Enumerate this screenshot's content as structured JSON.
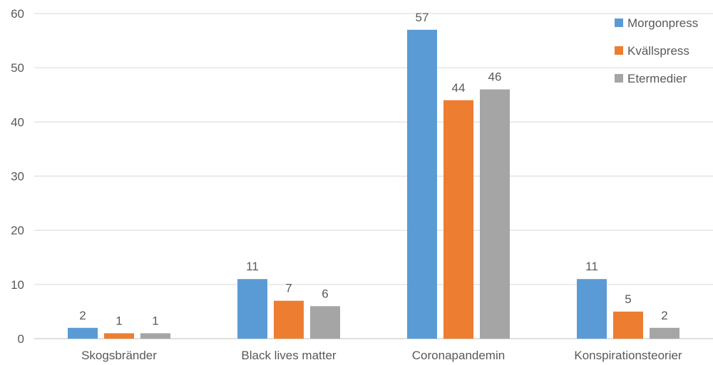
{
  "chart_data": {
    "type": "bar",
    "categories": [
      "Skogsbränder",
      "Black lives matter",
      "Coronapandemin",
      "Konspirationsteorier"
    ],
    "series": [
      {
        "name": "Morgonpress",
        "color": "#5b9bd5",
        "values": [
          2,
          11,
          57,
          11
        ]
      },
      {
        "name": "Kvällspress",
        "color": "#ed7d31",
        "values": [
          1,
          7,
          44,
          5
        ]
      },
      {
        "name": "Etermedier",
        "color": "#a5a5a5",
        "values": [
          1,
          6,
          46,
          2
        ]
      }
    ],
    "ylim": [
      0,
      60
    ],
    "yticks": [
      0,
      10,
      20,
      30,
      40,
      50,
      60
    ],
    "grid": true,
    "legend": "top-right",
    "data_labels": true
  }
}
